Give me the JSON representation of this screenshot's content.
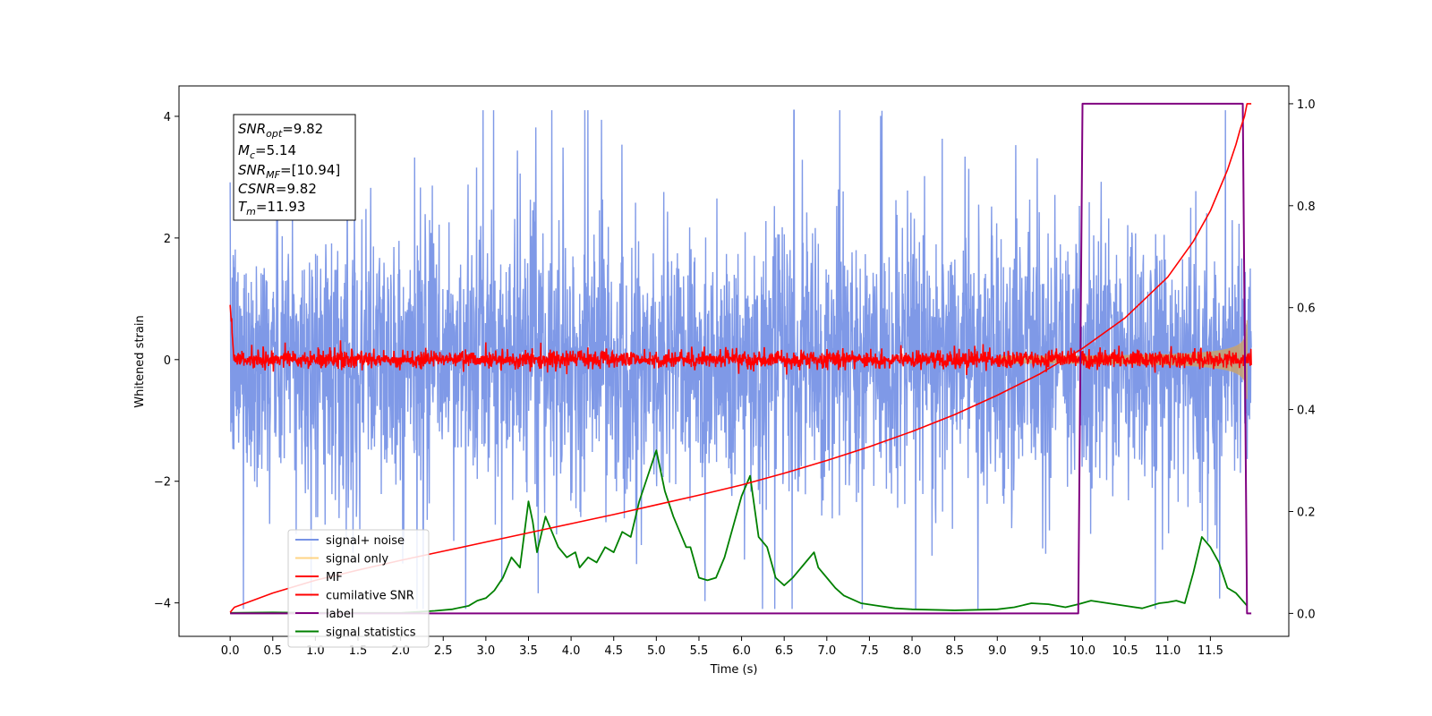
{
  "chart_data": {
    "type": "line",
    "xlabel": "Time (s)",
    "ylabel": "Whitened strain",
    "xlim": [
      -0.6,
      12.42
    ],
    "ylim": [
      -4.55,
      4.5
    ],
    "y2lim": [
      -0.045,
      1.035
    ],
    "xticks": [
      "0.0",
      "0.5",
      "1.0",
      "1.5",
      "2.0",
      "2.5",
      "3.0",
      "3.5",
      "4.0",
      "4.5",
      "5.0",
      "5.5",
      "6.0",
      "6.5",
      "7.0",
      "7.5",
      "8.0",
      "8.5",
      "9.0",
      "9.5",
      "10.0",
      "10.5",
      "11.0",
      "11.5"
    ],
    "yticks": [
      "−4",
      "−2",
      "0",
      "2",
      "4"
    ],
    "y2ticks": [
      "0.0",
      "0.2",
      "0.4",
      "0.6",
      "0.8",
      "1.0"
    ],
    "grid": false,
    "legend_position": "lower-left",
    "annotation": {
      "snr_opt": {
        "base": "SNR",
        "sub": "opt",
        "value": "=9.82"
      },
      "mc": {
        "base": "M",
        "sub": "c",
        "value": "=5.14"
      },
      "snr_mf": {
        "base": "SNR",
        "sub": "MF",
        "value": "=[10.94]"
      },
      "csnr": {
        "base": "CSNR",
        "sub": "",
        "value": "=9.82"
      },
      "tm": {
        "base": "T",
        "sub": "m",
        "value": "=11.93"
      }
    },
    "series": [
      {
        "name": "signal+ noise",
        "color": "#7894e6",
        "axis": "left",
        "kind": "noise",
        "amplitude": 4.1,
        "x_range": [
          0,
          11.98
        ]
      },
      {
        "name": "signal only",
        "color": "#ffc966",
        "axis": "left",
        "kind": "chirp",
        "tc": 11.93,
        "x_range": [
          9.0,
          11.93
        ]
      },
      {
        "name": "MF",
        "color": "#ff0000",
        "axis": "left",
        "kind": "mf",
        "x_range": [
          0,
          11.98
        ]
      },
      {
        "name": "cumilative SNR",
        "color": "#ff0000",
        "axis": "right",
        "x": [
          0.0,
          0.05,
          0.5,
          1.0,
          1.5,
          2.0,
          2.5,
          3.0,
          3.5,
          4.0,
          4.5,
          5.0,
          5.5,
          6.0,
          6.5,
          7.0,
          7.5,
          8.0,
          8.5,
          9.0,
          9.5,
          10.0,
          10.5,
          11.0,
          11.3,
          11.5,
          11.7,
          11.8,
          11.85,
          11.9,
          11.93,
          11.98
        ],
        "values": [
          0.002,
          0.012,
          0.04,
          0.065,
          0.085,
          0.104,
          0.122,
          0.14,
          0.158,
          0.176,
          0.194,
          0.213,
          0.232,
          0.252,
          0.275,
          0.3,
          0.327,
          0.357,
          0.39,
          0.428,
          0.47,
          0.52,
          0.58,
          0.66,
          0.73,
          0.79,
          0.87,
          0.92,
          0.95,
          0.975,
          1.0,
          1.0
        ]
      },
      {
        "name": "label",
        "color": "#800080",
        "axis": "right",
        "x": [
          0.0,
          9.95,
          10.0,
          11.88,
          11.93,
          11.98
        ],
        "values": [
          0.0,
          0.0,
          1.0,
          1.0,
          0.0,
          0.0
        ]
      },
      {
        "name": "signal statistics",
        "color": "#008000",
        "axis": "right",
        "x": [
          0.0,
          0.5,
          1.0,
          1.5,
          2.0,
          2.2,
          2.4,
          2.6,
          2.8,
          2.9,
          3.0,
          3.1,
          3.2,
          3.3,
          3.4,
          3.5,
          3.55,
          3.6,
          3.7,
          3.75,
          3.85,
          3.95,
          4.05,
          4.1,
          4.2,
          4.3,
          4.4,
          4.5,
          4.6,
          4.7,
          4.8,
          4.9,
          5.0,
          5.1,
          5.2,
          5.3,
          5.35,
          5.4,
          5.5,
          5.6,
          5.7,
          5.8,
          5.9,
          6.0,
          6.1,
          6.2,
          6.3,
          6.4,
          6.5,
          6.6,
          6.7,
          6.8,
          6.85,
          6.9,
          7.0,
          7.1,
          7.2,
          7.4,
          7.6,
          7.8,
          8.0,
          8.5,
          9.0,
          9.2,
          9.4,
          9.6,
          9.8,
          9.95,
          10.1,
          10.3,
          10.5,
          10.7,
          10.9,
          11.0,
          11.1,
          11.2,
          11.3,
          11.4,
          11.5,
          11.6,
          11.7,
          11.8,
          11.93
        ],
        "values": [
          0.001,
          0.002,
          0.001,
          0.001,
          0.001,
          0.003,
          0.005,
          0.008,
          0.015,
          0.025,
          0.03,
          0.045,
          0.07,
          0.11,
          0.09,
          0.22,
          0.18,
          0.12,
          0.19,
          0.17,
          0.13,
          0.11,
          0.12,
          0.09,
          0.11,
          0.1,
          0.13,
          0.12,
          0.16,
          0.15,
          0.22,
          0.27,
          0.32,
          0.24,
          0.19,
          0.15,
          0.13,
          0.13,
          0.07,
          0.065,
          0.07,
          0.11,
          0.17,
          0.23,
          0.27,
          0.15,
          0.13,
          0.07,
          0.055,
          0.07,
          0.09,
          0.11,
          0.12,
          0.09,
          0.07,
          0.05,
          0.035,
          0.02,
          0.015,
          0.01,
          0.008,
          0.006,
          0.008,
          0.012,
          0.02,
          0.018,
          0.012,
          0.018,
          0.025,
          0.02,
          0.015,
          0.01,
          0.02,
          0.022,
          0.025,
          0.02,
          0.08,
          0.15,
          0.13,
          0.1,
          0.05,
          0.04,
          0.015
        ]
      }
    ]
  }
}
